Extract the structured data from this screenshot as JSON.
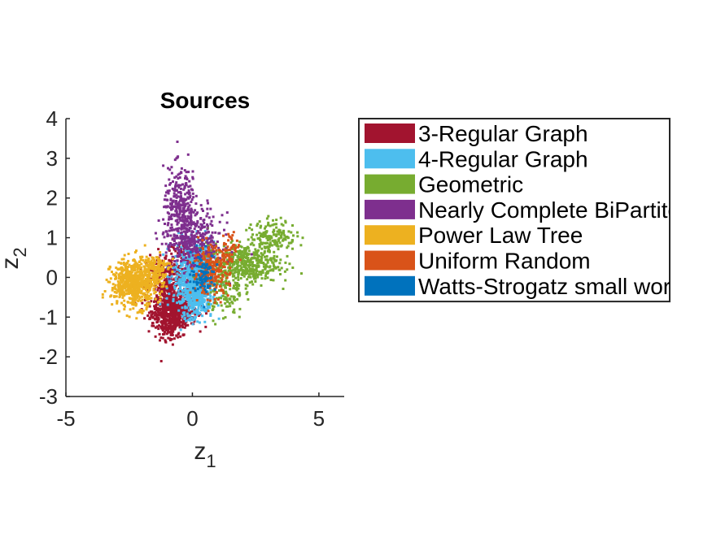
{
  "chart_data": {
    "type": "scatter",
    "title": "Sources",
    "xlabel": {
      "base": "z",
      "sub": "1"
    },
    "ylabel": {
      "base": "z",
      "sub": "2"
    },
    "xlim": [
      -5,
      6
    ],
    "ylim": [
      -3,
      4
    ],
    "xticks": [
      -5,
      0,
      5
    ],
    "yticks": [
      -3,
      -2,
      -1,
      0,
      1,
      2,
      3,
      4
    ],
    "grid": false,
    "legend_position": "right-outside",
    "series": [
      {
        "name": "3-Regular Graph",
        "color": "#A2142F",
        "clusters": [
          {
            "cx": -0.7,
            "cy": -0.85,
            "sx": 0.45,
            "sy": 0.2,
            "n": 500
          },
          {
            "cx": -1.0,
            "cy": -0.3,
            "sx": 0.4,
            "sy": 0.45,
            "n": 380
          },
          {
            "cx": -0.9,
            "cy": -1.3,
            "sx": 0.25,
            "sy": 0.15,
            "n": 100
          },
          {
            "cx": -0.3,
            "cy": 0.3,
            "sx": 0.3,
            "sy": 0.3,
            "n": 120
          }
        ]
      },
      {
        "name": "4-Regular Graph",
        "color": "#4DBEEE",
        "clusters": [
          {
            "cx": 0.05,
            "cy": 0.0,
            "sx": 0.4,
            "sy": 0.45,
            "n": 650
          },
          {
            "cx": 0.2,
            "cy": -0.5,
            "sx": 0.3,
            "sy": 0.25,
            "n": 200
          }
        ]
      },
      {
        "name": "Geometric",
        "color": "#77AC30",
        "clusters": [
          {
            "cx": 2.0,
            "cy": 0.35,
            "sx": 0.7,
            "sy": 0.25,
            "n": 450
          },
          {
            "cx": 3.2,
            "cy": 1.05,
            "sx": 0.45,
            "sy": 0.2,
            "n": 160
          },
          {
            "cx": 1.3,
            "cy": -0.35,
            "sx": 0.35,
            "sy": 0.35,
            "n": 120
          }
        ]
      },
      {
        "name": "Nearly Complete BiPartite",
        "color": "#7E2F8E",
        "clusters": [
          {
            "cx": -0.45,
            "cy": 1.6,
            "sx": 0.35,
            "sy": 0.55,
            "n": 380
          },
          {
            "cx": 0.2,
            "cy": 0.9,
            "sx": 0.5,
            "sy": 0.35,
            "n": 280
          }
        ]
      },
      {
        "name": "Power Law Tree",
        "color": "#EDB120",
        "clusters": [
          {
            "cx": -2.3,
            "cy": -0.15,
            "sx": 0.45,
            "sy": 0.3,
            "n": 600
          },
          {
            "cx": -1.5,
            "cy": 0.2,
            "sx": 0.3,
            "sy": 0.2,
            "n": 150
          }
        ]
      },
      {
        "name": "Uniform Random",
        "color": "#D95319",
        "clusters": [
          {
            "cx": 0.75,
            "cy": 0.15,
            "sx": 0.35,
            "sy": 0.3,
            "n": 260
          },
          {
            "cx": 1.5,
            "cy": 0.8,
            "sx": 0.2,
            "sy": 0.2,
            "n": 40
          }
        ]
      },
      {
        "name": "Watts-Strogatz small world",
        "color": "#0072BD",
        "clusters": [
          {
            "cx": 0.45,
            "cy": 0.1,
            "sx": 0.25,
            "sy": 0.25,
            "n": 90
          }
        ]
      }
    ]
  }
}
